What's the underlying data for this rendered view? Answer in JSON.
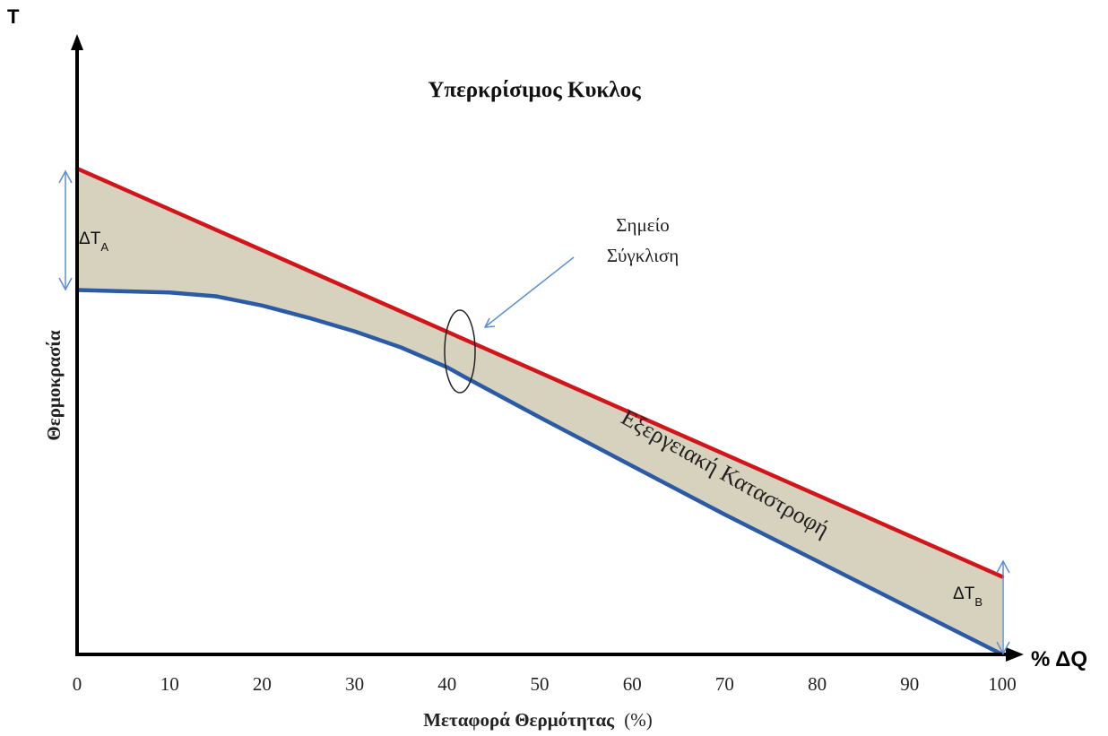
{
  "chart_data": {
    "type": "line",
    "title": "Υπερκρίσιμος Κυκλος",
    "xlabel_main": "Μεταφορά Θερμότητας",
    "xlabel_unit": "(%)",
    "ylabel": "Θερμοκρασία",
    "corner_y_label": "T",
    "corner_x_label": "% ΔQ",
    "xlim": [
      0,
      100
    ],
    "x_ticks": [
      "0",
      "10",
      "20",
      "30",
      "40",
      "50",
      "60",
      "70",
      "80",
      "90",
      "100"
    ],
    "grid": false,
    "series": [
      {
        "color": "#d0151b",
        "x": [
          0,
          10,
          20,
          30,
          40,
          50,
          60,
          70,
          80,
          90,
          100
        ],
        "y": [
          100,
          91.6,
          83.2,
          74.8,
          66.4,
          58,
          49.6,
          41.2,
          32.8,
          24.4,
          16
        ]
      },
      {
        "color": "#2b5aa6",
        "x": [
          0,
          10,
          15,
          20,
          25,
          30,
          35,
          40,
          42,
          50,
          60,
          70,
          80,
          90,
          100
        ],
        "y": [
          75,
          74.5,
          73.7,
          71.8,
          69.3,
          66.5,
          63.2,
          59.1,
          57,
          48.8,
          38.8,
          28.8,
          19.2,
          9.6,
          0
        ]
      }
    ],
    "fill_color": "#d7d2be",
    "annotations": {
      "delta_a": {
        "base": "ΔT",
        "sub": "A"
      },
      "delta_b": {
        "base": "ΔT",
        "sub": "B"
      },
      "pinch_line1": "Σημείο",
      "pinch_line2": "Σύγκλιση",
      "exergy_label": "Εξεργειακή Καταστροφή"
    },
    "annotation_color": "#5b8fd1"
  }
}
